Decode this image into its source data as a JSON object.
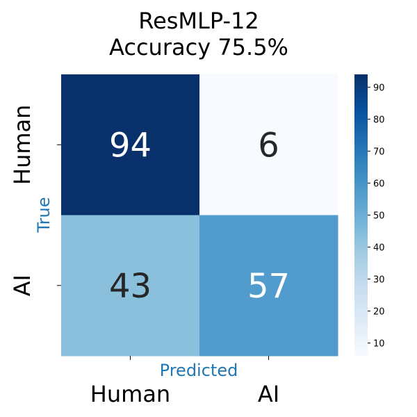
{
  "chart_data": {
    "type": "heatmap",
    "title_line1": "ResMLP-12",
    "title_line2": "Accuracy 75.5%",
    "xlabel": "Predicted",
    "ylabel": "True",
    "x_categories": [
      "Human",
      "AI"
    ],
    "y_categories": [
      "Human",
      "AI"
    ],
    "values": [
      [
        94,
        6
      ],
      [
        43,
        57
      ]
    ],
    "colormap": "Blues",
    "vmin": 6,
    "vmax": 94,
    "colorbar_ticks": [
      10,
      20,
      30,
      40,
      50,
      60,
      70,
      80,
      90
    ],
    "annotations": true,
    "grid": false
  }
}
